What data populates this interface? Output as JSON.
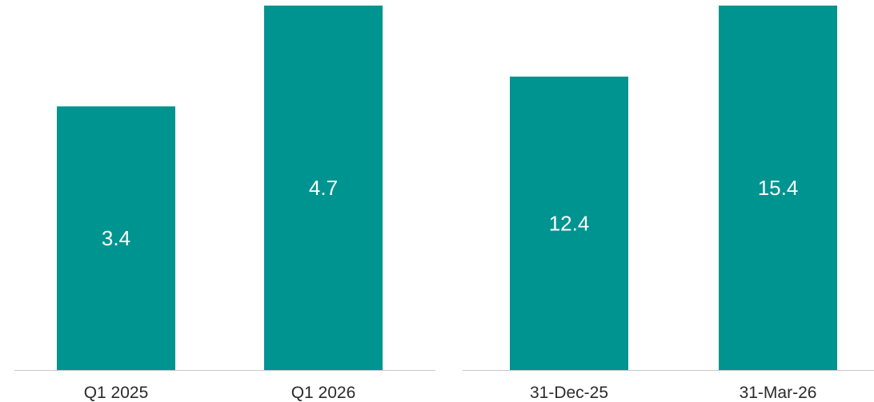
{
  "colors": {
    "bar": "#009490",
    "axis": "#c8c8c8",
    "label_on_bar": "#ffffff",
    "category_text": "#2b2b2b"
  },
  "chart_data": [
    {
      "type": "bar",
      "categories": [
        "Q1 2025",
        "Q1 2026"
      ],
      "values": [
        3.4,
        4.7
      ],
      "data_labels": [
        "3.4",
        "4.7"
      ],
      "title": "",
      "xlabel": "",
      "ylabel": "",
      "ylim": [
        0,
        4.7
      ],
      "grid": false,
      "legend": "none"
    },
    {
      "type": "bar",
      "categories": [
        "31-Dec-25",
        "31-Mar-26"
      ],
      "values": [
        12.4,
        15.4
      ],
      "data_labels": [
        "12.4",
        "15.4"
      ],
      "title": "",
      "xlabel": "",
      "ylabel": "",
      "ylim": [
        0,
        15.4
      ],
      "grid": false,
      "legend": "none"
    }
  ]
}
